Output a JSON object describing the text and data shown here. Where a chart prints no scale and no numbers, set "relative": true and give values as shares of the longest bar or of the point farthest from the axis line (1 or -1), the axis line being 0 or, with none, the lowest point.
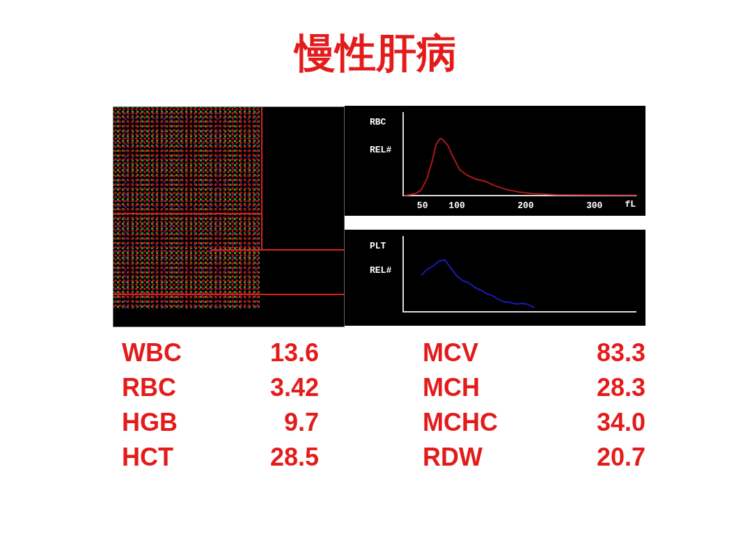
{
  "chart_data": [
    {
      "type": "other",
      "title": "慢性肝病"
    },
    {
      "type": "line",
      "title": "RBC",
      "ylabel": "REL#",
      "xlabel": "fL",
      "relative": true,
      "color": "#b01818",
      "xlim": [
        22,
        360
      ],
      "xticks": [
        50,
        100,
        200,
        300
      ],
      "grid": false,
      "legend": false,
      "marker": "none",
      "x": [
        23,
        40,
        48,
        57,
        64,
        70,
        75,
        78,
        87,
        94,
        104,
        115,
        128,
        142,
        155,
        172,
        189,
        210,
        244,
        360
      ],
      "values": [
        0,
        0.04,
        0.1,
        0.31,
        0.6,
        0.9,
        0.99,
        1,
        0.88,
        0.69,
        0.46,
        0.36,
        0.29,
        0.25,
        0.18,
        0.11,
        0.07,
        0.04,
        0.02,
        0.01
      ]
    },
    {
      "type": "line",
      "title": "PLT",
      "ylabel": "REL#",
      "relative": true,
      "color": "#1a1ab4",
      "grid": false,
      "legend": false,
      "marker": "none",
      "categories": [
        null,
        null,
        null,
        null,
        null,
        null,
        null,
        null,
        null,
        null,
        null,
        null,
        null,
        null,
        null,
        null,
        null,
        null,
        null,
        null,
        null,
        null,
        null,
        null,
        null,
        null,
        null,
        null,
        null,
        null,
        null,
        null,
        null,
        null,
        null,
        null,
        null,
        null,
        null,
        null
      ],
      "values": [
        null,
        null,
        null,
        0.7,
        0.82,
        0.88,
        0.98,
        1,
        0.84,
        0.69,
        0.6,
        0.56,
        0.47,
        0.42,
        0.35,
        0.31,
        0.24,
        0.19,
        0.18,
        0.15,
        0.16,
        0.14,
        0.08,
        null,
        null,
        null,
        null,
        null,
        null,
        null,
        null,
        null,
        null,
        null,
        null,
        null,
        null,
        null,
        null,
        null
      ]
    },
    {
      "type": "other",
      "color": "#e41b1b",
      "categories": [
        "WBC",
        "RBC",
        "HGB",
        "HCT",
        "MCV",
        "MCH",
        "MCHC",
        "RDW"
      ],
      "value_labels": [
        "13.6",
        "3.42",
        "9.7",
        "28.5",
        "83.3",
        "28.3",
        "34.0",
        "20.7"
      ]
    }
  ]
}
